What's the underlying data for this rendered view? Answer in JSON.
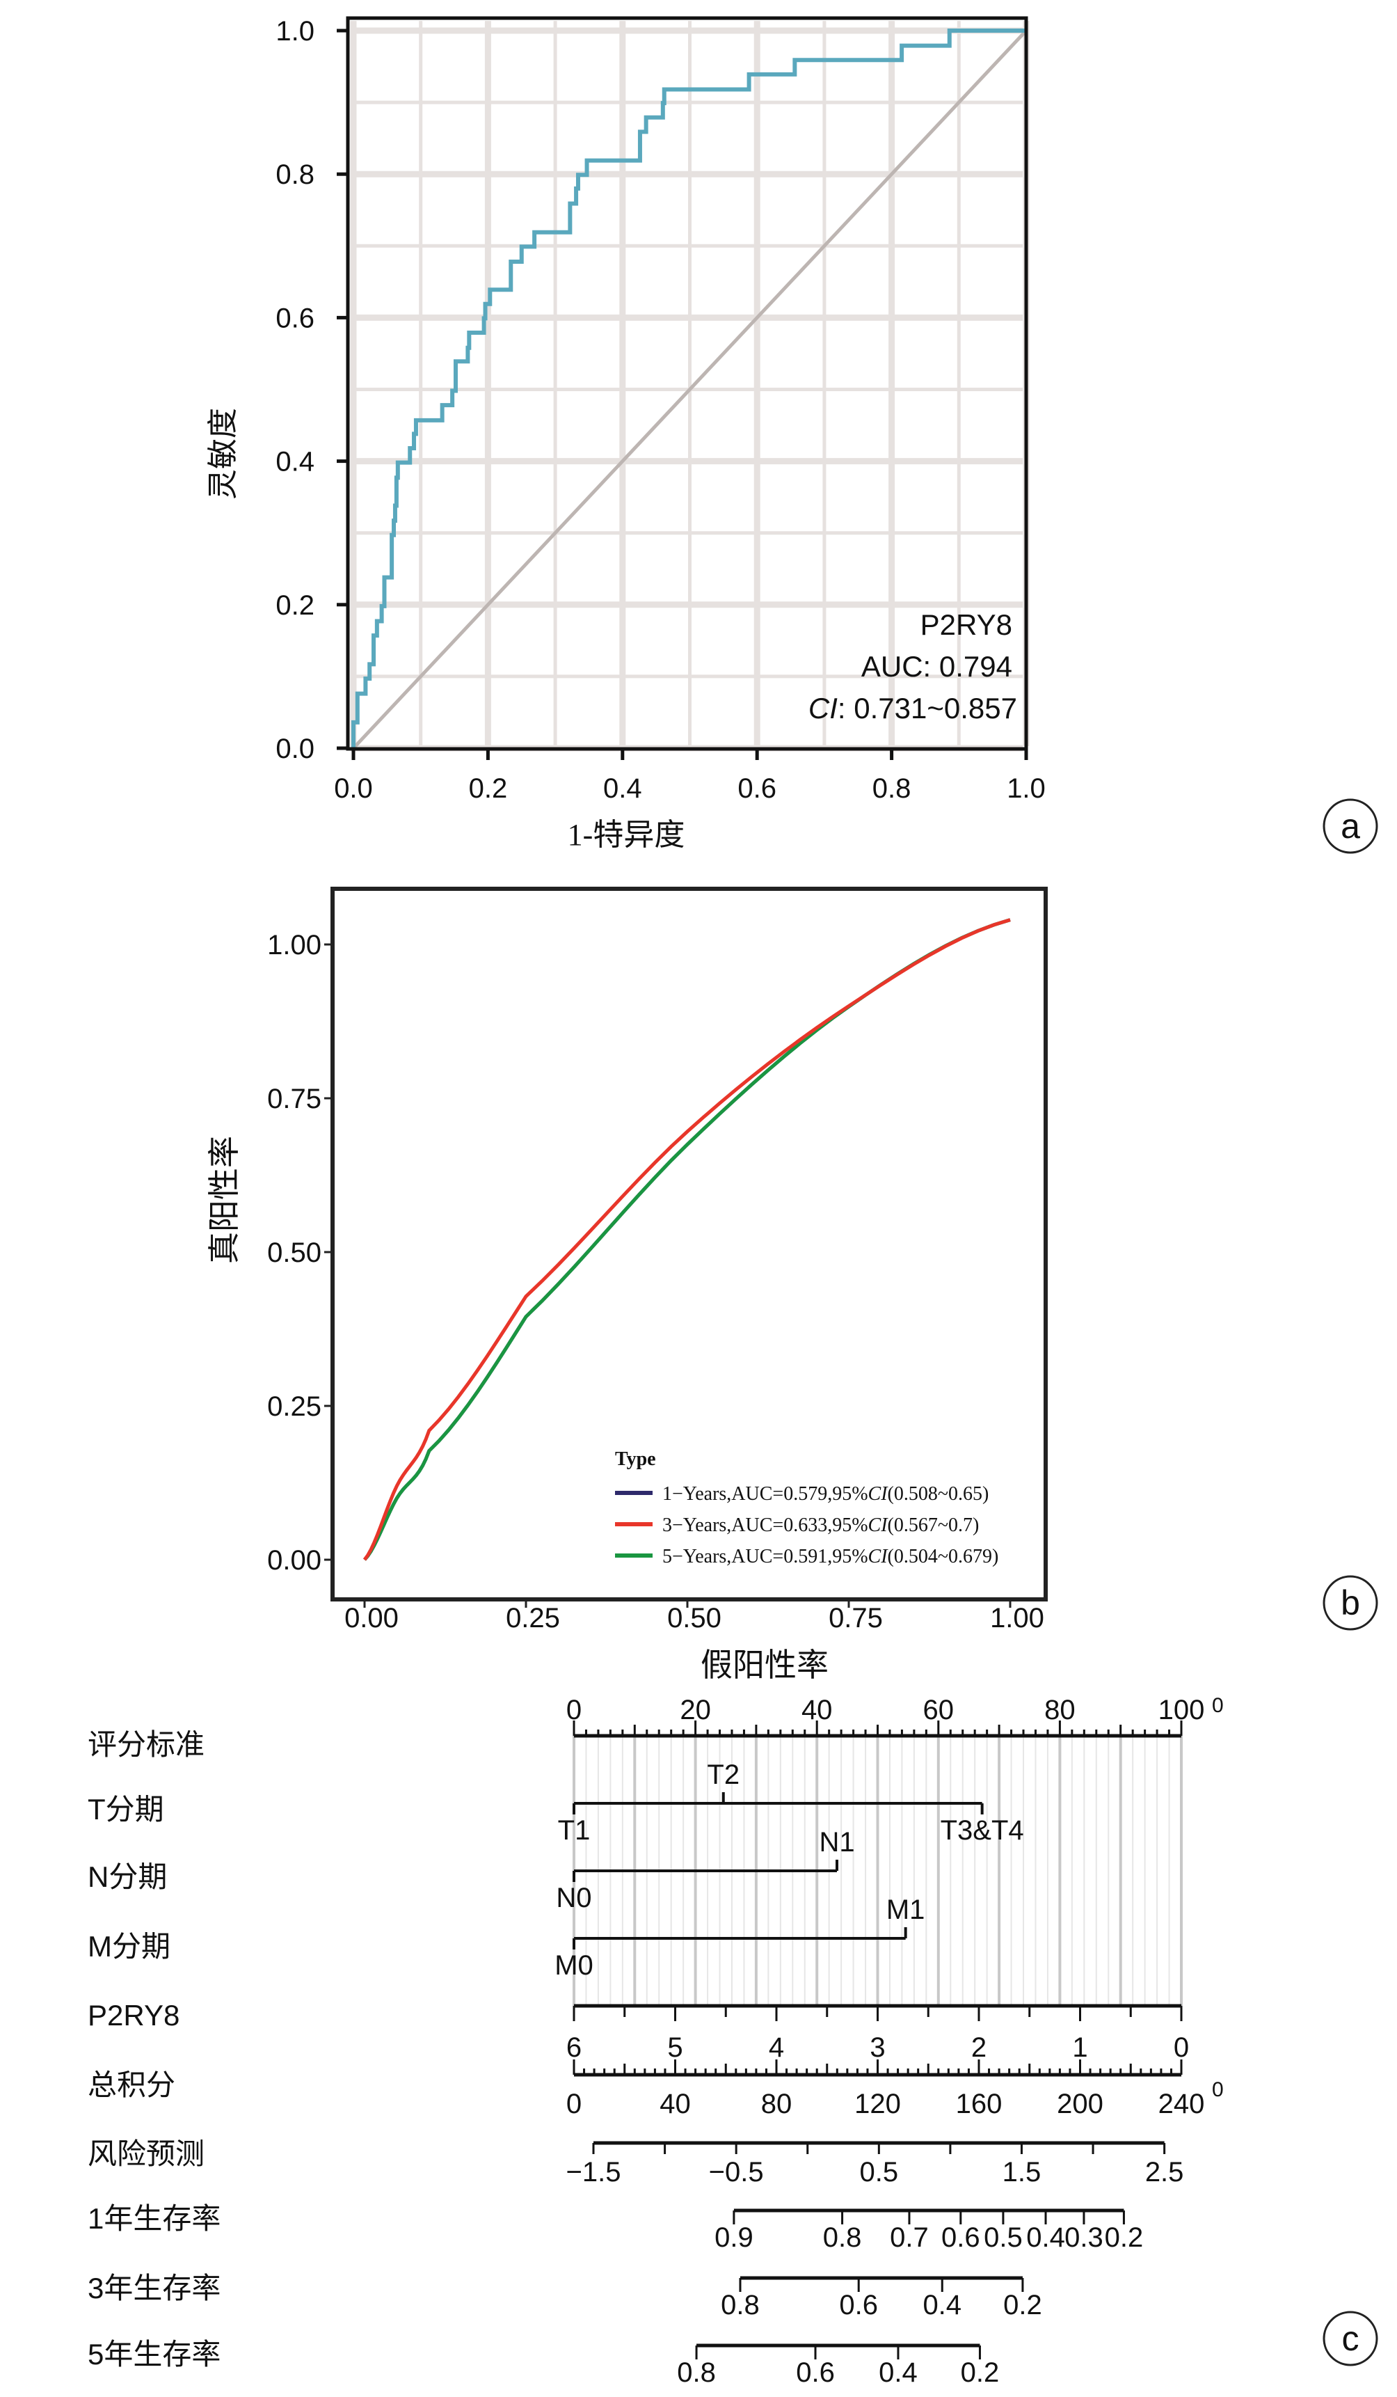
{
  "chart_data": [
    {
      "panel": "a",
      "type": "line",
      "subtype": "roc-step",
      "xlabel": "1-特异度",
      "ylabel": "灵敏度",
      "xlim": [
        0,
        1
      ],
      "ylim": [
        0,
        1
      ],
      "x_ticks": [
        "0.0",
        "0.2",
        "0.4",
        "0.6",
        "0.8",
        "1.0"
      ],
      "y_ticks": [
        "0.0",
        "0.2",
        "0.4",
        "0.6",
        "0.8",
        "1.0"
      ],
      "grid": true,
      "colors": {
        "curve": "#5aa8bd",
        "diagonal": "#bdb5b2",
        "grid": "#e6e1df"
      },
      "annotation": {
        "marker": "P2RY8",
        "auc": "AUC: 0.794",
        "ci_label": "CI",
        "ci_value": ": 0.731~0.857"
      },
      "series": [
        {
          "name": "P2RY8",
          "x": [
            0,
            0,
            0.006,
            0.006,
            0.018,
            0.018,
            0.024,
            0.024,
            0.03,
            0.03,
            0.035,
            0.035,
            0.042,
            0.042,
            0.046,
            0.046,
            0.057,
            0.057,
            0.06,
            0.06,
            0.062,
            0.062,
            0.064,
            0.064,
            0.066,
            0.066,
            0.084,
            0.084,
            0.09,
            0.09,
            0.093,
            0.093,
            0.132,
            0.132,
            0.147,
            0.147,
            0.152,
            0.152,
            0.17,
            0.17,
            0.172,
            0.172,
            0.194,
            0.194,
            0.196,
            0.196,
            0.203,
            0.203,
            0.234,
            0.234,
            0.25,
            0.25,
            0.269,
            0.269,
            0.322,
            0.322,
            0.331,
            0.331,
            0.334,
            0.334,
            0.347,
            0.347,
            0.426,
            0.426,
            0.435,
            0.435,
            0.46,
            0.46,
            0.462,
            0.462,
            0.588,
            0.588,
            0.656,
            0.656,
            0.815,
            0.815,
            0.886,
            0.886,
            1.0
          ],
          "y": [
            0,
            0.036,
            0.036,
            0.076,
            0.076,
            0.097,
            0.097,
            0.117,
            0.117,
            0.157,
            0.157,
            0.177,
            0.177,
            0.198,
            0.198,
            0.238,
            0.238,
            0.297,
            0.297,
            0.317,
            0.317,
            0.338,
            0.338,
            0.377,
            0.377,
            0.398,
            0.398,
            0.418,
            0.418,
            0.438,
            0.438,
            0.457,
            0.457,
            0.478,
            0.478,
            0.498,
            0.498,
            0.539,
            0.539,
            0.558,
            0.558,
            0.579,
            0.579,
            0.599,
            0.599,
            0.619,
            0.619,
            0.639,
            0.639,
            0.678,
            0.678,
            0.699,
            0.699,
            0.719,
            0.719,
            0.759,
            0.759,
            0.78,
            0.78,
            0.799,
            0.799,
            0.819,
            0.819,
            0.859,
            0.859,
            0.879,
            0.879,
            0.899,
            0.899,
            0.918,
            0.918,
            0.939,
            0.939,
            0.959,
            0.959,
            0.979,
            0.979,
            1.0,
            1.0
          ]
        },
        {
          "name": "reference",
          "x": [
            0,
            1
          ],
          "y": [
            0,
            1
          ]
        }
      ],
      "badge": "a"
    },
    {
      "panel": "b",
      "type": "line",
      "xlabel": "假阳性率",
      "ylabel": "真阳性率",
      "xlim": [
        -0.05,
        1.05
      ],
      "ylim": [
        -0.05,
        1.1
      ],
      "x_ticks": [
        "0.00",
        "0.25",
        "0.50",
        "0.75",
        "1.00"
      ],
      "y_ticks": [
        "0.00",
        "0.25",
        "0.50",
        "0.75",
        "1.00"
      ],
      "grid": false,
      "legend": {
        "title": "Type",
        "placement": "bottom-right"
      },
      "series": [
        {
          "name": "1−Years,AUC=0.579,95%",
          "ci_label": "CI",
          "ci_range": "(0.508~0.65)",
          "color": "#2e2a6b",
          "x": [
            0,
            0.05,
            0.1,
            0.25,
            0.5,
            0.75,
            1.0
          ],
          "y": [
            0,
            0.1,
            0.177,
            0.395,
            0.675,
            0.899,
            1.04
          ]
        },
        {
          "name": "3−Years,AUC=0.633,95%",
          "ci_label": "CI",
          "ci_range": "(0.567~0.7)",
          "color": "#e8362a",
          "x": [
            0,
            0.05,
            0.1,
            0.25,
            0.5,
            0.75,
            1.0
          ],
          "y": [
            0,
            0.12,
            0.21,
            0.428,
            0.696,
            0.9,
            1.04
          ]
        },
        {
          "name": "5−Years,AUC=0.591,95%",
          "ci_label": "CI",
          "ci_range": "(0.504~0.679)",
          "color": "#1a9641",
          "x": [
            0,
            0.05,
            0.1,
            0.25,
            0.5,
            0.75,
            1.0
          ],
          "y": [
            0,
            0.1,
            0.177,
            0.395,
            0.675,
            0.899,
            1.04
          ]
        }
      ],
      "badge": "b"
    },
    {
      "panel": "c",
      "type": "nomogram",
      "rows": [
        {
          "label": "评分标准",
          "kind": "points",
          "min": 0,
          "max": 100,
          "labels": [
            "0",
            "20",
            "40",
            "60",
            "80",
            "100"
          ],
          "label_values": [
            0,
            20,
            40,
            60,
            80,
            100
          ],
          "tail": "0"
        },
        {
          "label": "T分期",
          "kind": "factor",
          "levels": [
            {
              "name": "T1",
              "points": 0,
              "pos": "below"
            },
            {
              "name": "T2",
              "points": 24.6,
              "pos": "above"
            },
            {
              "name": "T3&T4",
              "points": 67.2,
              "pos": "below"
            }
          ]
        },
        {
          "label": "N分期",
          "kind": "factor",
          "levels": [
            {
              "name": "N0",
              "points": 0,
              "pos": "below"
            },
            {
              "name": "N1",
              "points": 43.3,
              "pos": "above"
            }
          ]
        },
        {
          "label": "M分期",
          "kind": "factor",
          "levels": [
            {
              "name": "M0",
              "points": 0,
              "pos": "below"
            },
            {
              "name": "M1",
              "points": 54.6,
              "pos": "above"
            }
          ]
        },
        {
          "label": "P2RY8",
          "kind": "continuous",
          "labels": [
            "6",
            "5",
            "4",
            "3",
            "2",
            "1",
            "0"
          ],
          "label_values": [
            6,
            5,
            4,
            3,
            2,
            1,
            0
          ],
          "value_at_0_points": 6,
          "value_at_100_points": 0
        },
        {
          "label": "总积分",
          "kind": "total",
          "min": 0,
          "max": 240,
          "labels": [
            "0",
            "40",
            "80",
            "120",
            "160",
            "200",
            "240"
          ],
          "label_values": [
            0,
            40,
            80,
            120,
            160,
            200,
            240
          ],
          "tail": "0"
        },
        {
          "label": "风险预测",
          "kind": "risk",
          "labels": [
            "−1.5",
            "−0.5",
            "0.5",
            "1.5",
            "2.5"
          ],
          "label_values": [
            -1.5,
            -0.5,
            0.5,
            1.5,
            2.5
          ],
          "tick_values": [
            -1.5,
            -1,
            -0.5,
            0,
            0.5,
            1,
            1.5,
            2,
            2.5
          ],
          "total_at_min": 7.7,
          "total_per_unit": 56.4
        },
        {
          "label": "1年生存率",
          "kind": "survival",
          "labels": [
            "0.9",
            "0.8",
            "0.7",
            "0.6",
            "0.5",
            "0.4",
            "0.3",
            "0.2"
          ],
          "total_points": [
            63.2,
            106,
            132.5,
            152.8,
            169.6,
            186.4,
            201.5,
            217.3
          ]
        },
        {
          "label": "3年生存率",
          "kind": "survival",
          "labels": [
            "0.8",
            "0.6",
            "0.4",
            "0.2"
          ],
          "total_points": [
            65.7,
            112.5,
            145.5,
            177.3
          ]
        },
        {
          "label": "5年生存率",
          "kind": "survival",
          "labels": [
            "0.8",
            "0.6",
            "0.4",
            "0.2"
          ],
          "total_points": [
            48.4,
            95.4,
            128.1,
            160.4
          ]
        }
      ],
      "badge": "c"
    }
  ]
}
